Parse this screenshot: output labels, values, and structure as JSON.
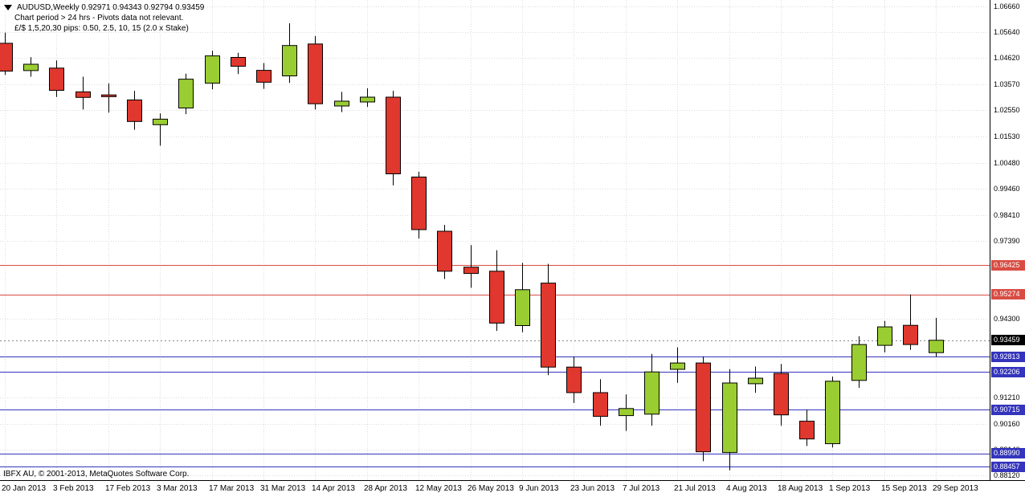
{
  "header": {
    "title_line": "AUDUSD,Weekly 0.92971 0.94343 0.92794 0.93459",
    "comment_line1": "Chart period > 24 hrs - Pivots data not relevant.",
    "comment_line2": "£/$ 1,5,20,30 pips: 0.50, 2.5, 10, 15 (2.0 x Stake)"
  },
  "footer": {
    "copyright": "IBFX AU, © 2001-2013, MetaQuotes Software Corp."
  },
  "colors": {
    "background": "#FFFFFF",
    "bull": "#9ACD32",
    "bear": "#E0382E",
    "wick_outline": "#000000",
    "grid": "#DCDCDC",
    "level_red": "#D94C43",
    "level_blue": "#3434BD",
    "current_badge": "#000000",
    "current_line": "#888888",
    "axis_text": "#000000"
  },
  "chart_data": {
    "type": "candlestick",
    "title": "AUDUSD,Weekly",
    "symbol": "AUDUSD",
    "timeframe": "Weekly",
    "grid": true,
    "legend": false,
    "ylim": [
      0.8793,
      1.0691
    ],
    "y_ticks": [
      {
        "v": 1.0666,
        "label": "1.06660"
      },
      {
        "v": 1.0564,
        "label": "1.05640"
      },
      {
        "v": 1.0462,
        "label": "1.04620"
      },
      {
        "v": 1.0357,
        "label": "1.03570"
      },
      {
        "v": 1.0255,
        "label": "1.02550"
      },
      {
        "v": 1.0153,
        "label": "1.01530"
      },
      {
        "v": 1.0048,
        "label": "1.00480"
      },
      {
        "v": 0.9946,
        "label": "0.99460"
      },
      {
        "v": 0.9841,
        "label": "0.98410"
      },
      {
        "v": 0.9739,
        "label": "0.97390"
      },
      {
        "v": 0.943,
        "label": "0.94300"
      },
      {
        "v": 0.9121,
        "label": "0.91210"
      },
      {
        "v": 0.9016,
        "label": "0.90160"
      },
      {
        "v": 0.8914,
        "label": "0.89140"
      },
      {
        "v": 0.8812,
        "label": "0.88120"
      }
    ],
    "x_tick_labels": [
      "20 Jan 2013",
      "3 Feb 2013",
      "17 Feb 2013",
      "3 Mar 2013",
      "17 Mar 2013",
      "31 Mar 2013",
      "14 Apr 2013",
      "28 Apr 2013",
      "12 May 2013",
      "26 May 2013",
      "9 Jun 2013",
      "23 Jun 2013",
      "7 Jul 2013",
      "21 Jul 2013",
      "4 Aug 2013",
      "18 Aug 2013",
      "1 Sep 2013",
      "15 Sep 2013",
      "29 Sep 2013"
    ],
    "levels": [
      {
        "v": 0.96425,
        "label": "0.96425",
        "color": "red"
      },
      {
        "v": 0.95274,
        "label": "0.95274",
        "color": "red"
      },
      {
        "v": 0.92813,
        "label": "0.92813",
        "color": "blue"
      },
      {
        "v": 0.92206,
        "label": "0.92206",
        "color": "blue"
      },
      {
        "v": 0.90715,
        "label": "0.90715",
        "color": "blue"
      },
      {
        "v": 0.8899,
        "label": "0.88990",
        "color": "blue"
      },
      {
        "v": 0.88457,
        "label": "0.88457",
        "color": "blue"
      }
    ],
    "current_price": {
      "v": 0.93459,
      "label": "0.93459"
    },
    "candles": [
      {
        "date": "20 Jan 2013",
        "ohlc": [
          1.052,
          1.0562,
          1.0395,
          1.041
        ]
      },
      {
        "date": "27 Jan 2013",
        "ohlc": [
          1.0412,
          1.0465,
          1.0388,
          1.0437
        ]
      },
      {
        "date": "3 Feb 2013",
        "ohlc": [
          1.0422,
          1.0452,
          1.0308,
          1.0334
        ]
      },
      {
        "date": "10 Feb 2013",
        "ohlc": [
          1.0328,
          1.0388,
          1.0258,
          1.0306
        ]
      },
      {
        "date": "17 Feb 2013",
        "ohlc": [
          1.0316,
          1.0362,
          1.0246,
          1.0309
        ]
      },
      {
        "date": "24 Feb 2013",
        "ohlc": [
          1.0296,
          1.0332,
          1.0178,
          1.0211
        ]
      },
      {
        "date": "3 Mar 2013",
        "ohlc": [
          1.0198,
          1.0243,
          1.0115,
          1.022
        ]
      },
      {
        "date": "10 Mar 2013",
        "ohlc": [
          1.0264,
          1.04,
          1.024,
          1.0378
        ]
      },
      {
        "date": "17 Mar 2013",
        "ohlc": [
          1.0362,
          1.049,
          1.0338,
          1.047
        ]
      },
      {
        "date": "24 Mar 2013",
        "ohlc": [
          1.0464,
          1.0482,
          1.0398,
          1.0429
        ]
      },
      {
        "date": "31 Mar 2013",
        "ohlc": [
          1.0413,
          1.0442,
          1.034,
          1.0366
        ]
      },
      {
        "date": "7 Apr 2013",
        "ohlc": [
          1.0391,
          1.0599,
          1.0363,
          1.0511
        ]
      },
      {
        "date": "14 Apr 2013",
        "ohlc": [
          1.0517,
          1.0549,
          1.0258,
          1.0281
        ]
      },
      {
        "date": "21 Apr 2013",
        "ohlc": [
          1.0272,
          1.0328,
          1.0248,
          1.0291
        ]
      },
      {
        "date": "28 Apr 2013",
        "ohlc": [
          1.0288,
          1.0342,
          1.0268,
          1.0307
        ]
      },
      {
        "date": "5 May 2013",
        "ohlc": [
          1.0307,
          1.0332,
          0.9958,
          1.0004
        ]
      },
      {
        "date": "12 May 2013",
        "ohlc": [
          0.9991,
          1.0012,
          0.9748,
          0.9783
        ]
      },
      {
        "date": "19 May 2013",
        "ohlc": [
          0.9777,
          0.9802,
          0.9588,
          0.9619
        ]
      },
      {
        "date": "26 May 2013",
        "ohlc": [
          0.9635,
          0.9722,
          0.9553,
          0.961
        ]
      },
      {
        "date": "2 Jun 2013",
        "ohlc": [
          0.9619,
          0.9702,
          0.9383,
          0.9414
        ]
      },
      {
        "date": "9 Jun 2013",
        "ohlc": [
          0.9404,
          0.9652,
          0.9378,
          0.9546
        ]
      },
      {
        "date": "16 Jun 2013",
        "ohlc": [
          0.9572,
          0.9648,
          0.9208,
          0.924
        ]
      },
      {
        "date": "23 Jun 2013",
        "ohlc": [
          0.924,
          0.9282,
          0.9098,
          0.9139
        ]
      },
      {
        "date": "30 Jun 2013",
        "ohlc": [
          0.9139,
          0.9192,
          0.9008,
          0.9045
        ]
      },
      {
        "date": "7 Jul 2013",
        "ohlc": [
          0.9048,
          0.9132,
          0.8988,
          0.9076
        ]
      },
      {
        "date": "14 Jul 2013",
        "ohlc": [
          0.9054,
          0.9292,
          0.9008,
          0.9221
        ]
      },
      {
        "date": "21 Jul 2013",
        "ohlc": [
          0.9231,
          0.9318,
          0.9178,
          0.9256
        ]
      },
      {
        "date": "28 Jul 2013",
        "ohlc": [
          0.9256,
          0.9282,
          0.8868,
          0.8905
        ]
      },
      {
        "date": "4 Aug 2013",
        "ohlc": [
          0.8902,
          0.9232,
          0.8832,
          0.9177
        ]
      },
      {
        "date": "11 Aug 2013",
        "ohlc": [
          0.9174,
          0.9242,
          0.9138,
          0.9196
        ]
      },
      {
        "date": "18 Aug 2013",
        "ohlc": [
          0.9215,
          0.9252,
          0.9008,
          0.9051
        ]
      },
      {
        "date": "25 Aug 2013",
        "ohlc": [
          0.9026,
          0.9072,
          0.8928,
          0.8956
        ]
      },
      {
        "date": "1 Sep 2013",
        "ohlc": [
          0.8937,
          0.9202,
          0.8922,
          0.9184
        ]
      },
      {
        "date": "8 Sep 2013",
        "ohlc": [
          0.9187,
          0.9362,
          0.9158,
          0.9329
        ]
      },
      {
        "date": "15 Sep 2013",
        "ohlc": [
          0.9326,
          0.9422,
          0.9298,
          0.9399
        ]
      },
      {
        "date": "22 Sep 2013",
        "ohlc": [
          0.9405,
          0.9527,
          0.9308,
          0.9329
        ]
      },
      {
        "date": "29 Sep 2013",
        "ohlc": [
          0.92971,
          0.94343,
          0.92794,
          0.93459
        ]
      }
    ]
  }
}
